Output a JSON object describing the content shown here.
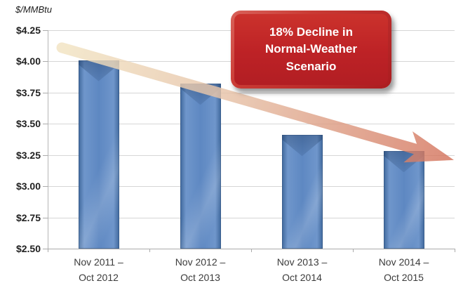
{
  "chart_data": {
    "type": "bar",
    "unit_label": "$/MMBtu",
    "categories": [
      "Nov 2011 –\nOct 2012",
      "Nov 2012 –\nOct 2013",
      "Nov 2013 –\nOct 2014",
      "Nov 2014 –\nOct 2015"
    ],
    "values": [
      4.01,
      3.82,
      3.41,
      3.28
    ],
    "ylim": [
      2.5,
      4.25
    ],
    "y_tick_step": 0.25,
    "y_ticks": [
      {
        "label": "$4.25",
        "value": 4.25
      },
      {
        "label": "$4.00",
        "value": 4.0
      },
      {
        "label": "$3.75",
        "value": 3.75
      },
      {
        "label": "$3.50",
        "value": 3.5
      },
      {
        "label": "$3.25",
        "value": 3.25
      },
      {
        "label": "$3.00",
        "value": 3.0
      },
      {
        "label": "$2.75",
        "value": 2.75
      },
      {
        "label": "$2.50",
        "value": 2.5
      }
    ],
    "grid": true,
    "legend": "none",
    "colors": {
      "bar_main": "#5e88c2",
      "bar_edge": "#3f689c",
      "gridline": "#d6d6d6",
      "axis": "#ababab",
      "tick_text": "#212121",
      "category_text": "#3b3b3b",
      "callout_box": "#bd2226",
      "callout_box_edge": "#d8625a",
      "callout_text": "#ffffff"
    },
    "annotation_callout": {
      "lines": [
        "18% Decline in",
        "Normal-Weather",
        "Scenario"
      ]
    },
    "trend_arrow": {
      "start_value": 4.11,
      "end_value": 3.21,
      "color_stops": [
        "#f2e4c3",
        "#e7c3a8",
        "#d4735c"
      ],
      "opacity": 0.82
    }
  }
}
